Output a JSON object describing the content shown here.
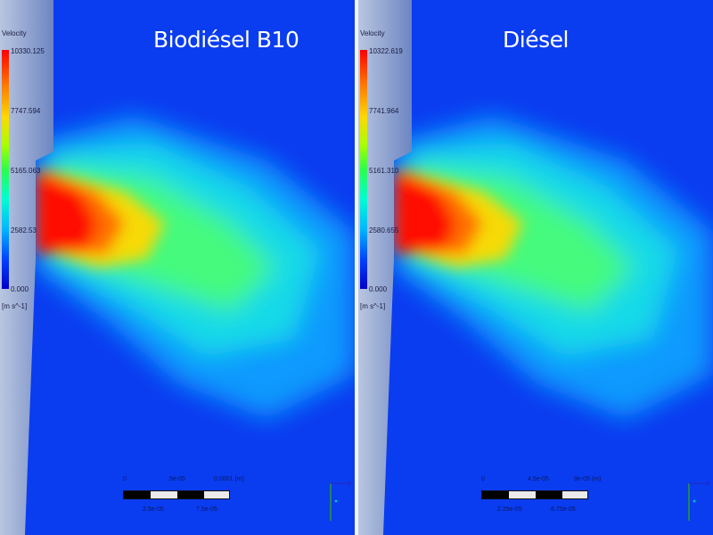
{
  "panels": [
    {
      "title": "Biodiésel B10",
      "legend": {
        "title": "Velocity",
        "ticks": [
          "10330.125",
          "7747.594",
          "5165.063",
          "2582.53",
          "0.000"
        ],
        "unit": "[m s^-1]"
      },
      "scale": {
        "top_labels": [
          "0",
          "5e-05",
          "0.0001 (m)"
        ],
        "bottom_labels": [
          "2.5e-05",
          "7.5e-05"
        ]
      }
    },
    {
      "title": "Diésel",
      "legend": {
        "title": "Velocity",
        "ticks": [
          "10322.619",
          "7741.964",
          "5161.310",
          "2580.655",
          "0.000"
        ],
        "unit": "[m s^-1]"
      },
      "scale": {
        "top_labels": [
          "0",
          "4.5e-05",
          "9e-05 (m)"
        ],
        "bottom_labels": [
          "2.25e-05",
          "6.75e-05"
        ]
      }
    }
  ],
  "colors": {
    "background": "#0a3cf0",
    "high": "#ff0000",
    "mid": "#2bff4a",
    "low": "#0000c8"
  },
  "icons": [
    "coordinate-axis-icon"
  ]
}
